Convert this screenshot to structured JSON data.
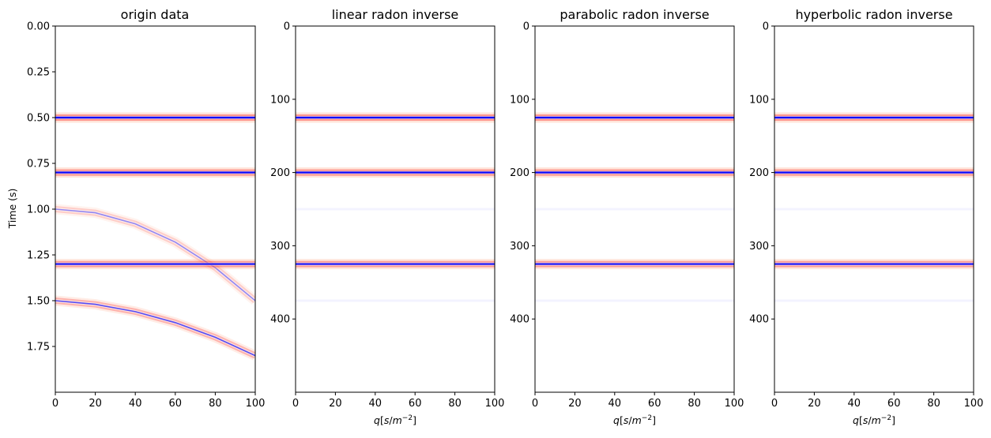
{
  "chart_data": [
    {
      "type": "heatmap",
      "title": "origin data",
      "xlabel": "",
      "ylabel": "Time (s)",
      "xlim": [
        0,
        100
      ],
      "ylim": [
        2.0,
        0.0
      ],
      "xticks": [
        0,
        20,
        40,
        60,
        80,
        100
      ],
      "xtick_labels": [
        "0",
        "20",
        "40",
        "60",
        "80",
        "100"
      ],
      "yticks": [
        0.0,
        0.25,
        0.5,
        0.75,
        1.0,
        1.25,
        1.5,
        1.75
      ],
      "ytick_labels": [
        "0.00",
        "0.25",
        "0.50",
        "0.75",
        "1.00",
        "1.25",
        "1.50",
        "1.75"
      ],
      "events": [
        {
          "kind": "flat",
          "t0": 0.5,
          "strength": 1.0
        },
        {
          "kind": "flat",
          "t0": 0.8,
          "strength": 1.0
        },
        {
          "kind": "curve",
          "points": [
            [
              0,
              1.0
            ],
            [
              20,
              1.02
            ],
            [
              40,
              1.08
            ],
            [
              60,
              1.18
            ],
            [
              80,
              1.32
            ],
            [
              100,
              1.5
            ]
          ],
          "strength": 0.45
        },
        {
          "kind": "flat",
          "t0": 1.3,
          "strength": 0.9
        },
        {
          "kind": "curve",
          "points": [
            [
              0,
              1.5
            ],
            [
              20,
              1.52
            ],
            [
              40,
              1.56
            ],
            [
              60,
              1.62
            ],
            [
              80,
              1.7
            ],
            [
              100,
              1.8
            ]
          ],
          "strength": 0.7
        }
      ]
    },
    {
      "type": "heatmap",
      "title": "linear radon inverse",
      "xlabel": "q[s/m^-2]",
      "ylabel": "",
      "xlim": [
        0,
        100
      ],
      "ylim": [
        500,
        0
      ],
      "xticks": [
        0,
        20,
        40,
        60,
        80,
        100
      ],
      "xtick_labels": [
        "0",
        "20",
        "40",
        "60",
        "80",
        "100"
      ],
      "yticks": [
        0,
        100,
        200,
        300,
        400
      ],
      "ytick_labels": [
        "0",
        "100",
        "200",
        "300",
        "400"
      ],
      "events": [
        {
          "kind": "flat",
          "t0": 125,
          "strength": 1.0
        },
        {
          "kind": "flat",
          "t0": 200,
          "strength": 1.0
        },
        {
          "kind": "flat",
          "t0": 325,
          "strength": 0.9
        },
        {
          "kind": "faint",
          "t0": 250,
          "strength": 0.15
        },
        {
          "kind": "faint",
          "t0": 375,
          "strength": 0.15
        }
      ]
    },
    {
      "type": "heatmap",
      "title": "parabolic radon inverse",
      "xlabel": "q[s/m^-2]",
      "ylabel": "",
      "xlim": [
        0,
        100
      ],
      "ylim": [
        500,
        0
      ],
      "xticks": [
        0,
        20,
        40,
        60,
        80,
        100
      ],
      "xtick_labels": [
        "0",
        "20",
        "40",
        "60",
        "80",
        "100"
      ],
      "yticks": [
        0,
        100,
        200,
        300,
        400
      ],
      "ytick_labels": [
        "0",
        "100",
        "200",
        "300",
        "400"
      ],
      "events": [
        {
          "kind": "flat",
          "t0": 125,
          "strength": 1.0
        },
        {
          "kind": "flat",
          "t0": 200,
          "strength": 1.0
        },
        {
          "kind": "flat",
          "t0": 325,
          "strength": 0.9
        },
        {
          "kind": "faint",
          "t0": 250,
          "strength": 0.15
        },
        {
          "kind": "faint",
          "t0": 375,
          "strength": 0.15
        }
      ]
    },
    {
      "type": "heatmap",
      "title": "hyperbolic radon inverse",
      "xlabel": "q[s/m^-2]",
      "ylabel": "",
      "xlim": [
        0,
        100
      ],
      "ylim": [
        500,
        0
      ],
      "xticks": [
        0,
        20,
        40,
        60,
        80,
        100
      ],
      "xtick_labels": [
        "0",
        "20",
        "40",
        "60",
        "80",
        "100"
      ],
      "yticks": [
        0,
        100,
        200,
        300,
        400
      ],
      "ytick_labels": [
        "0",
        "100",
        "200",
        "300",
        "400"
      ],
      "events": [
        {
          "kind": "flat",
          "t0": 125,
          "strength": 1.0
        },
        {
          "kind": "flat",
          "t0": 200,
          "strength": 1.0
        },
        {
          "kind": "flat",
          "t0": 325,
          "strength": 0.9
        },
        {
          "kind": "faint",
          "t0": 250,
          "strength": 0.15
        },
        {
          "kind": "faint",
          "t0": 375,
          "strength": 0.15
        }
      ]
    }
  ],
  "colors": {
    "center": "#0000ff",
    "side_lobe": "#ff0000",
    "outer_lobe": "#ffa07a",
    "axes": "#000000"
  }
}
